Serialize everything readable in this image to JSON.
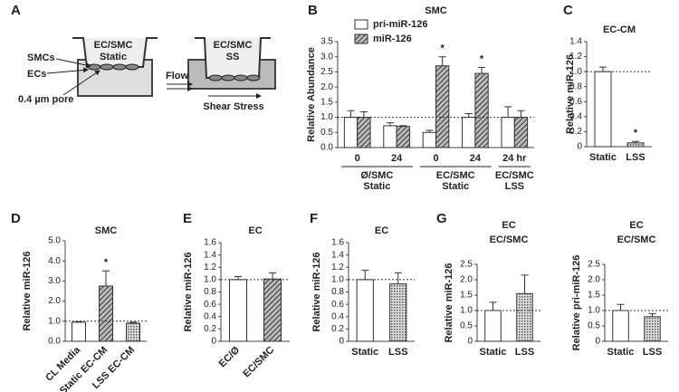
{
  "diagram": {
    "panel": "A",
    "static_title": [
      "EC/SMC",
      "Static"
    ],
    "ss_title": [
      "EC/SMC",
      "SS"
    ],
    "labels": {
      "smcs": "SMCs",
      "ecs": "ECs",
      "pore": "0.4 µm pore",
      "flow": "Flow",
      "shear": "Shear Stress"
    }
  },
  "chart_data": [
    {
      "type": "bar",
      "panel": "B",
      "title": "SMC",
      "ylabel": "Relative Abundance",
      "ylim": [
        0,
        3.5
      ],
      "yticks": [
        {
          "value": 0,
          "label": "0.0"
        },
        0.5,
        {
          "value": 1,
          "label": "1.0"
        },
        1.5,
        {
          "value": 2,
          "label": "2.0"
        },
        2.5,
        {
          "value": 3,
          "label": "3.0"
        },
        3.5
      ],
      "reference_line": 1,
      "groups": [
        {
          "name": [
            "Ø/SMC",
            "Static"
          ],
          "categories": [
            "0",
            "24"
          ]
        },
        {
          "name": [
            "EC/SMC",
            "Static"
          ],
          "categories": [
            "0",
            "24"
          ]
        },
        {
          "name": [
            "EC/SMC",
            "LSS"
          ],
          "categories": [
            "24 hr"
          ]
        }
      ],
      "series": [
        {
          "name": "pri-miR-126",
          "fill": "white",
          "values": [
            1.0,
            0.72,
            0.5,
            1.0,
            1.0
          ],
          "errors": [
            0.22,
            0.1,
            0.07,
            0.12,
            0.35
          ]
        },
        {
          "name": "miR-126",
          "fill": "hatch",
          "values": [
            1.0,
            0.7,
            2.7,
            2.45,
            1.0
          ],
          "errors": [
            0.18,
            0.02,
            0.3,
            0.2,
            0.22
          ]
        }
      ],
      "annotations": [
        {
          "text": "*",
          "series": 1,
          "category": 2
        },
        {
          "text": "*",
          "series": 1,
          "category": 3
        }
      ]
    },
    {
      "type": "bar",
      "panel": "C",
      "title": "EC-CM",
      "ylabel": "Relative miR-126",
      "ylim": [
        0,
        1.4
      ],
      "yticks": [
        0,
        0.2,
        0.4,
        0.6,
        0.8,
        {
          "value": 1,
          "label": "1.0"
        },
        1.2,
        1.4
      ],
      "reference_line": 1,
      "categories": [
        "Static",
        "LSS"
      ],
      "fills": [
        "white",
        "dots"
      ],
      "series": [
        {
          "values": [
            1.0,
            0.05
          ],
          "errors": [
            0.06,
            0.02
          ]
        }
      ],
      "annotations": [
        {
          "text": "*",
          "series": 0,
          "category": 1
        }
      ]
    },
    {
      "type": "bar",
      "panel": "D",
      "title": "SMC",
      "ylabel": "Relative miR-126",
      "ylim": [
        0,
        5
      ],
      "yticks": [
        {
          "value": 0,
          "label": "0.0"
        },
        {
          "value": 1,
          "label": "1.0"
        },
        {
          "value": 2,
          "label": "2.0"
        },
        {
          "value": 3,
          "label": "3.0"
        },
        {
          "value": 4,
          "label": "4.0"
        },
        {
          "value": 5,
          "label": "5.0"
        }
      ],
      "reference_line": 1,
      "categories": [
        "CL Media",
        "Static EC-CM",
        "LSS EC-CM"
      ],
      "rotate_labels": true,
      "fills": [
        "white",
        "hatch",
        "dots"
      ],
      "series": [
        {
          "values": [
            0.95,
            2.75,
            0.9
          ],
          "errors": [
            0.03,
            0.75,
            0.05
          ]
        }
      ],
      "annotations": [
        {
          "text": "*",
          "series": 0,
          "category": 1
        }
      ]
    },
    {
      "type": "bar",
      "panel": "E",
      "title": "EC",
      "ylabel": "Relative miR-126",
      "ylim": [
        0,
        1.6
      ],
      "yticks": [
        0,
        0.2,
        0.4,
        0.6,
        0.8,
        {
          "value": 1,
          "label": "1.0"
        },
        1.2,
        1.4,
        1.6
      ],
      "reference_line": 1,
      "categories": [
        "EC/Ø",
        "EC/SMC"
      ],
      "rotate_labels": true,
      "fills": [
        "white",
        "hatch"
      ],
      "series": [
        {
          "values": [
            1.0,
            1.01
          ],
          "errors": [
            0.05,
            0.1
          ]
        }
      ]
    },
    {
      "type": "bar",
      "panel": "F",
      "title": "EC",
      "ylabel": "Relative miR-126",
      "ylim": [
        0,
        1.6
      ],
      "yticks": [
        0,
        0.2,
        0.4,
        0.6,
        0.8,
        {
          "value": 1,
          "label": "1.0"
        },
        1.2,
        1.4,
        1.6
      ],
      "reference_line": 1,
      "categories": [
        "Static",
        "LSS"
      ],
      "fills": [
        "white",
        "dots"
      ],
      "series": [
        {
          "values": [
            1.0,
            0.93
          ],
          "errors": [
            0.15,
            0.18
          ]
        }
      ]
    },
    {
      "type": "bar",
      "panel": "G",
      "title": "EC",
      "subtitle": "EC/SMC",
      "ylabel": "Relative miR-126",
      "ylim": [
        0,
        2.5
      ],
      "yticks": [
        0,
        0.5,
        {
          "value": 1,
          "label": "1.0"
        },
        1.5,
        {
          "value": 2,
          "label": "2.0"
        },
        2.5
      ],
      "reference_line": 1,
      "categories": [
        "Static",
        "LSS"
      ],
      "fills": [
        "white",
        "dots"
      ],
      "series": [
        {
          "values": [
            1.0,
            1.55
          ],
          "errors": [
            0.27,
            0.6
          ]
        }
      ]
    },
    {
      "type": "bar",
      "title": "EC",
      "subtitle": "EC/SMC",
      "ylabel": "Relative pri-miR-126",
      "ylim": [
        0,
        2.5
      ],
      "yticks": [
        0,
        0.5,
        {
          "value": 1,
          "label": "1.0"
        },
        1.5,
        {
          "value": 2,
          "label": "2.0"
        },
        2.5
      ],
      "reference_line": 1,
      "categories": [
        "Static",
        "LSS"
      ],
      "fills": [
        "white",
        "dots"
      ],
      "series": [
        {
          "values": [
            1.0,
            0.8
          ],
          "errors": [
            0.2,
            0.1
          ]
        }
      ]
    }
  ]
}
